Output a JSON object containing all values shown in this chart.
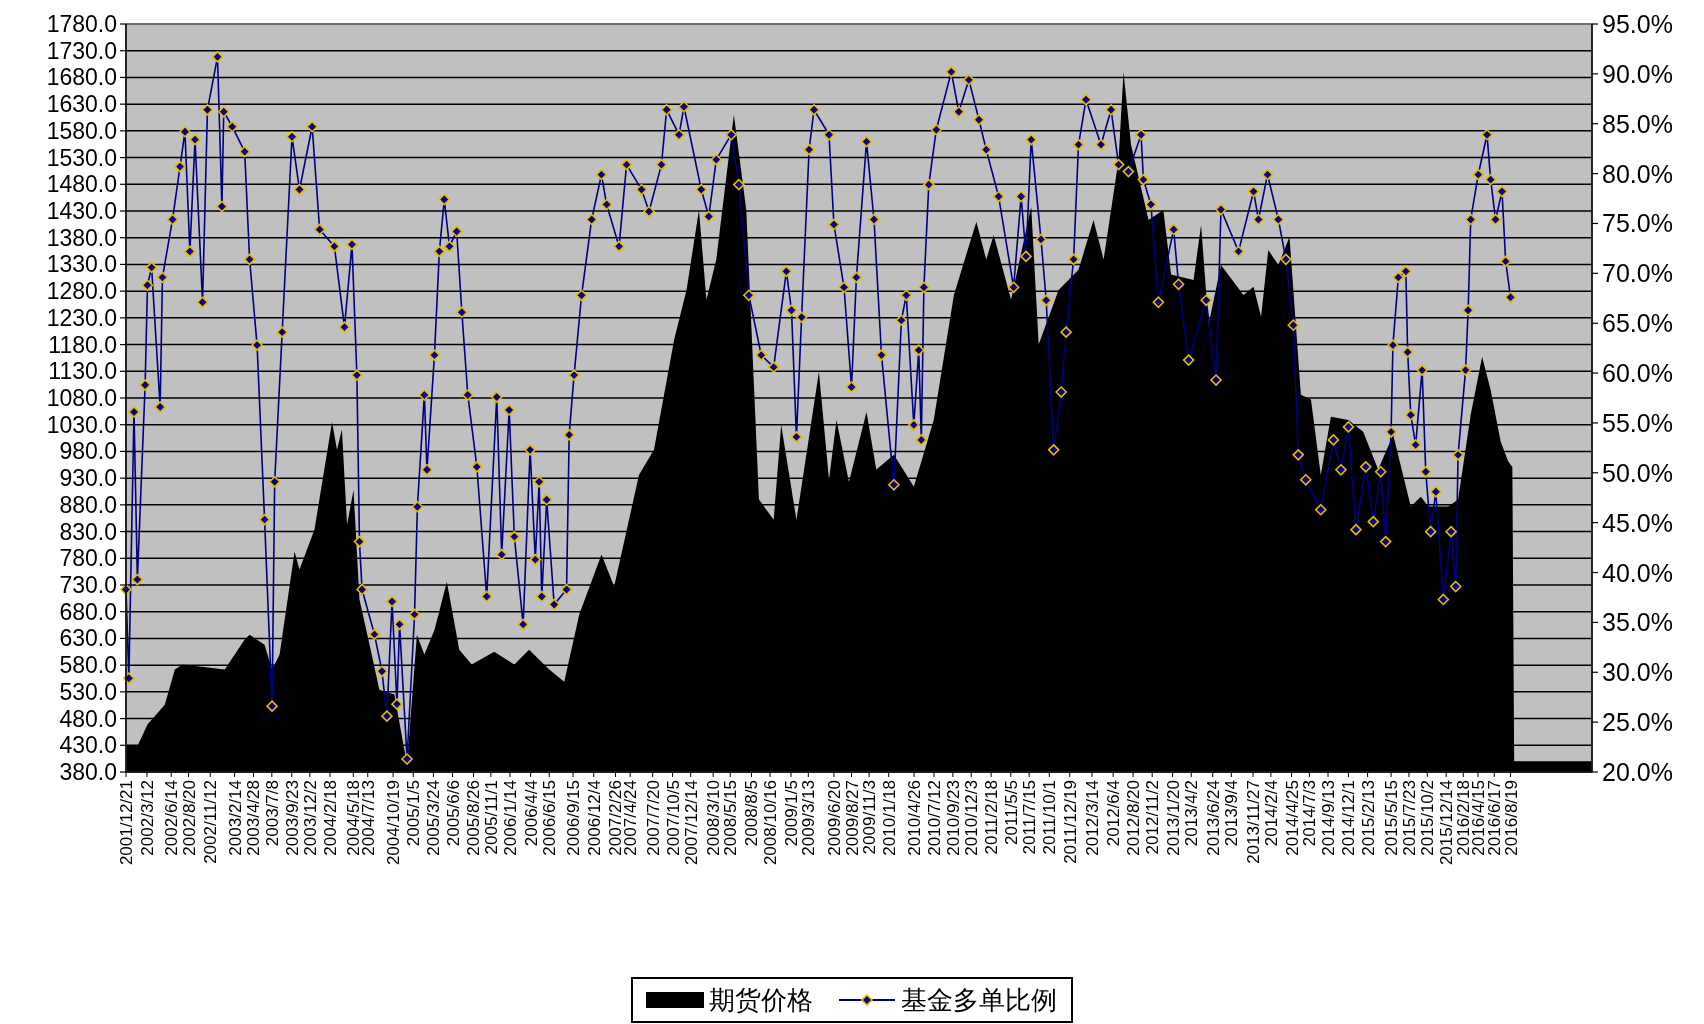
{
  "chart_data": {
    "type": "line",
    "xlim": [
      "2001-12-21",
      "2017-06-30"
    ],
    "ylim": [
      380,
      1780
    ],
    "y2lim": [
      20,
      95
    ],
    "xticks": [
      {
        "value": "2001-12-21",
        "label": "2001/12/21"
      },
      {
        "value": "2002-03-12",
        "label": "2002/3/12"
      },
      {
        "value": "2002-06-14",
        "label": "2002/6/14"
      },
      {
        "value": "2002-08-20",
        "label": "2002/8/20"
      },
      {
        "value": "2002-11-12",
        "label": "2002/11/12"
      },
      {
        "value": "2003-02-14",
        "label": "2003/2/14"
      },
      {
        "value": "2003-04-28",
        "label": "2003/4/28"
      },
      {
        "value": "2003-07-08",
        "label": "2003/7/8"
      },
      {
        "value": "2003-09-23",
        "label": "2003/9/23"
      },
      {
        "value": "2003-12-02",
        "label": "2003/12/2"
      },
      {
        "value": "2004-02-18",
        "label": "2004/2/18"
      },
      {
        "value": "2004-05-18",
        "label": "2004/5/18"
      },
      {
        "value": "2004-07-13",
        "label": "2004/7/13"
      },
      {
        "value": "2004-10-19",
        "label": "2004/10/19"
      },
      {
        "value": "2005-01-05",
        "label": "2005/1/5"
      },
      {
        "value": "2005-03-24",
        "label": "2005/3/24"
      },
      {
        "value": "2005-06-06",
        "label": "2005/6/6"
      },
      {
        "value": "2005-08-26",
        "label": "2005/8/26"
      },
      {
        "value": "2005-11-01",
        "label": "2005/11/1"
      },
      {
        "value": "2006-01-14",
        "label": "2006/1/14"
      },
      {
        "value": "2006-04-04",
        "label": "2006/4/4"
      },
      {
        "value": "2006-06-15",
        "label": "2006/6/15"
      },
      {
        "value": "2006-09-15",
        "label": "2006/9/15"
      },
      {
        "value": "2006-12-04",
        "label": "2006/12/4"
      },
      {
        "value": "2007-02-26",
        "label": "2007/2/26"
      },
      {
        "value": "2007-04-24",
        "label": "2007/4/24"
      },
      {
        "value": "2007-07-20",
        "label": "2007/7/20"
      },
      {
        "value": "2007-10-05",
        "label": "2007/10/5"
      },
      {
        "value": "2007-12-14",
        "label": "2007/12/14"
      },
      {
        "value": "2008-03-10",
        "label": "2008/3/10"
      },
      {
        "value": "2008-05-15",
        "label": "2008/5/15"
      },
      {
        "value": "2008-08-05",
        "label": "2008/8/5"
      },
      {
        "value": "2008-10-16",
        "label": "2008/10/16"
      },
      {
        "value": "2009-01-05",
        "label": "2009/1/5"
      },
      {
        "value": "2009-03-13",
        "label": "2009/3/13"
      },
      {
        "value": "2009-06-20",
        "label": "2009/6/20"
      },
      {
        "value": "2009-08-27",
        "label": "2009/8/27"
      },
      {
        "value": "2009-11-03",
        "label": "2009/11/3"
      },
      {
        "value": "2010-01-18",
        "label": "2010/1/18"
      },
      {
        "value": "2010-04-26",
        "label": "2010/4/26"
      },
      {
        "value": "2010-07-12",
        "label": "2010/7/12"
      },
      {
        "value": "2010-09-23",
        "label": "2010/9/23"
      },
      {
        "value": "2010-12-03",
        "label": "2010/12/3"
      },
      {
        "value": "2011-02-18",
        "label": "2011/2/18"
      },
      {
        "value": "2011-05-05",
        "label": "2011/5/5"
      },
      {
        "value": "2011-07-15",
        "label": "2011/7/15"
      },
      {
        "value": "2011-10-01",
        "label": "2011/10/1"
      },
      {
        "value": "2011-12-19",
        "label": "2011/12/19"
      },
      {
        "value": "2012-03-14",
        "label": "2012/3/14"
      },
      {
        "value": "2012-06-04",
        "label": "2012/6/4"
      },
      {
        "value": "2012-08-20",
        "label": "2012/8/20"
      },
      {
        "value": "2012-11-02",
        "label": "2012/11/2"
      },
      {
        "value": "2013-01-20",
        "label": "2013/1/20"
      },
      {
        "value": "2013-04-02",
        "label": "2013/4/2"
      },
      {
        "value": "2013-06-24",
        "label": "2013/6/24"
      },
      {
        "value": "2013-09-04",
        "label": "2013/9/4"
      },
      {
        "value": "2013-11-27",
        "label": "2013/11/27"
      },
      {
        "value": "2014-02-04",
        "label": "2014/2/4"
      },
      {
        "value": "2014-04-25",
        "label": "2014/4/25"
      },
      {
        "value": "2014-07-03",
        "label": "2014/7/3"
      },
      {
        "value": "2014-09-13",
        "label": "2014/9/13"
      },
      {
        "value": "2014-12-01",
        "label": "2014/12/1"
      },
      {
        "value": "2015-02-13",
        "label": "2015/2/13"
      },
      {
        "value": "2015-05-15",
        "label": "2015/5/15"
      },
      {
        "value": "2015-07-23",
        "label": "2015/7/23"
      },
      {
        "value": "2015-10-02",
        "label": "2015/10/2"
      },
      {
        "value": "2015-12-14",
        "label": "2015/12/14"
      },
      {
        "value": "2016-02-18",
        "label": "2016/2/18"
      },
      {
        "value": "2016-04-15",
        "label": "2016/4/15"
      },
      {
        "value": "2016-06-17",
        "label": "2016/6/17"
      },
      {
        "value": "2016-08-19",
        "label": "2016/8/19"
      }
    ],
    "yticks": [
      {
        "value": 380,
        "label": "380.0"
      },
      {
        "value": 430,
        "label": "430.0"
      },
      {
        "value": 480,
        "label": "480.0"
      },
      {
        "value": 530,
        "label": "530.0"
      },
      {
        "value": 580,
        "label": "580.0"
      },
      {
        "value": 630,
        "label": "630.0"
      },
      {
        "value": 680,
        "label": "680.0"
      },
      {
        "value": 730,
        "label": "730.0"
      },
      {
        "value": 780,
        "label": "780.0"
      },
      {
        "value": 830,
        "label": "830.0"
      },
      {
        "value": 880,
        "label": "880.0"
      },
      {
        "value": 930,
        "label": "930.0"
      },
      {
        "value": 980,
        "label": "980.0"
      },
      {
        "value": 1030,
        "label": "1030.0"
      },
      {
        "value": 1080,
        "label": "1080.0"
      },
      {
        "value": 1130,
        "label": "1130.0"
      },
      {
        "value": 1180,
        "label": "1180.0"
      },
      {
        "value": 1230,
        "label": "1230.0"
      },
      {
        "value": 1280,
        "label": "1280.0"
      },
      {
        "value": 1330,
        "label": "1330.0"
      },
      {
        "value": 1380,
        "label": "1380.0"
      },
      {
        "value": 1430,
        "label": "1430.0"
      },
      {
        "value": 1480,
        "label": "1480.0"
      },
      {
        "value": 1530,
        "label": "1530.0"
      },
      {
        "value": 1580,
        "label": "1580.0"
      },
      {
        "value": 1630,
        "label": "1630.0"
      },
      {
        "value": 1680,
        "label": "1680.0"
      },
      {
        "value": 1730,
        "label": "1730.0"
      },
      {
        "value": 1780,
        "label": "1780.0"
      }
    ],
    "y2ticks": [
      {
        "value": 20,
        "label": "20.0%"
      },
      {
        "value": 25,
        "label": "25.0%"
      },
      {
        "value": 30,
        "label": "30.0%"
      },
      {
        "value": 35,
        "label": "35.0%"
      },
      {
        "value": 40,
        "label": "40.0%"
      },
      {
        "value": 45,
        "label": "45.0%"
      },
      {
        "value": 50,
        "label": "50.0%"
      },
      {
        "value": 55,
        "label": "55.0%"
      },
      {
        "value": 60,
        "label": "60.0%"
      },
      {
        "value": 65,
        "label": "65.0%"
      },
      {
        "value": 70,
        "label": "70.0%"
      },
      {
        "value": 75,
        "label": "75.0%"
      },
      {
        "value": 80,
        "label": "80.0%"
      },
      {
        "value": 85,
        "label": "85.0%"
      },
      {
        "value": 90,
        "label": "90.0%"
      },
      {
        "value": 95,
        "label": "95.0%"
      }
    ],
    "grid": "y",
    "legend": "bottom",
    "series": [
      {
        "type": "area",
        "name": "期货价格",
        "color": "#000000",
        "x": [
          "2001-12-21",
          "2002-02-03",
          "2002-03-14",
          "2002-05-20",
          "2002-06-28",
          "2002-07-27",
          "2003-01-07",
          "2003-03-25",
          "2003-04-13",
          "2003-06-10",
          "2003-07-09",
          "2003-08-07",
          "2003-10-04",
          "2003-10-23",
          "2003-12-20",
          "2004-02-26",
          "2004-03-16",
          "2004-04-04",
          "2004-04-24",
          "2004-05-19",
          "2004-06-11",
          "2004-07-20",
          "2004-08-27",
          "2004-10-24",
          "2004-12-12",
          "2005-01-19",
          "2005-02-17",
          "2005-03-28",
          "2005-05-15",
          "2005-07-02",
          "2005-08-19",
          "2005-11-14",
          "2006-01-31",
          "2006-03-29",
          "2006-06-15",
          "2006-08-12",
          "2006-10-09",
          "2007-01-03",
          "2007-02-21",
          "2007-05-28",
          "2007-07-25",
          "2007-10-11",
          "2007-11-28",
          "2008-01-15",
          "2008-02-13",
          "2008-03-22",
          "2008-05-29",
          "2008-07-16",
          "2008-09-03",
          "2008-10-30",
          "2008-11-28",
          "2009-01-26",
          "2009-04-23",
          "2009-06-01",
          "2009-06-30",
          "2009-08-17",
          "2009-10-24",
          "2009-12-01",
          "2010-02-07",
          "2010-04-25",
          "2010-07-11",
          "2010-09-27",
          "2010-12-23",
          "2011-01-30",
          "2011-02-28",
          "2011-05-06",
          "2011-07-23",
          "2011-08-21",
          "2011-11-06",
          "2012-01-22",
          "2012-03-20",
          "2012-04-28",
          "2012-06-25",
          "2012-07-14",
          "2012-08-12",
          "2012-10-19",
          "2012-12-15",
          "2013-01-14",
          "2013-04-11",
          "2013-05-10",
          "2013-06-08",
          "2013-07-26",
          "2013-10-21",
          "2013-11-29",
          "2013-12-28",
          "2014-01-25",
          "2014-03-05",
          "2014-04-17",
          "2014-05-31",
          "2014-07-09",
          "2014-08-16",
          "2014-09-24",
          "2014-12-01",
          "2015-01-27",
          "2015-03-26",
          "2015-05-23",
          "2015-07-30",
          "2015-09-07",
          "2015-10-06",
          "2015-12-22",
          "2016-01-29",
          "2016-03-18",
          "2016-05-01",
          "2016-06-03",
          "2016-07-12",
          "2016-08-10",
          "2016-08-26",
          "2016-09-02",
          "2017-06-30"
        ],
        "values": [
          431,
          428,
          469,
          506,
          572,
          581,
          572,
          628,
          637,
          618,
          572,
          600,
          792,
          759,
          834,
          1035,
          983,
          1021,
          843,
          908,
          703,
          618,
          534,
          525,
          394,
          637,
          600,
          646,
          736,
          609,
          581,
          605,
          581,
          609,
          572,
          549,
          675,
          787,
          727,
          936,
          983,
          1189,
          1282,
          1432,
          1264,
          1339,
          1610,
          1432,
          890,
          852,
          1030,
          852,
          1129,
          927,
          1039,
          923,
          1054,
          946,
          974,
          914,
          1039,
          1273,
          1410,
          1339,
          1385,
          1264,
          1438,
          1180,
          1282,
          1320,
          1413,
          1339,
          1526,
          1690,
          1554,
          1413,
          1432,
          1311,
          1301,
          1404,
          1217,
          1329,
          1273,
          1288,
          1232,
          1357,
          1329,
          1382,
          1086,
          1077,
          936,
          1045,
          1039,
          1017,
          946,
          1011,
          877,
          895,
          877,
          877,
          890,
          1049,
          1157,
          1095,
          998,
          961,
          951,
          400,
          400
        ]
      },
      {
        "name": "基金多单比例",
        "color": "#000080",
        "axis": "y2",
        "marker": "diamond",
        "x": [
          "2001-12-21",
          "2002-01-01",
          "2002-01-21",
          "2002-02-03",
          "2002-03-05",
          "2002-03-14",
          "2002-03-30",
          "2002-05-02",
          "2002-05-11",
          "2002-06-19",
          "2002-07-18",
          "2002-08-06",
          "2002-08-25",
          "2002-09-14",
          "2002-10-13",
          "2002-11-01",
          "2002-12-10",
          "2002-12-27",
          "2003-01-03",
          "2003-02-05",
          "2003-03-25",
          "2003-04-13",
          "2003-05-12",
          "2003-06-10",
          "2003-07-09",
          "2003-07-19",
          "2003-08-17",
          "2003-09-24",
          "2003-10-23",
          "2003-12-11",
          "2004-01-09",
          "2004-03-06",
          "2004-04-14",
          "2004-05-13",
          "2004-06-01",
          "2004-06-11",
          "2004-06-21",
          "2004-08-08",
          "2004-09-06",
          "2004-09-25",
          "2004-10-15",
          "2004-11-03",
          "2004-11-13",
          "2004-12-12",
          "2005-01-10",
          "2005-01-21",
          "2005-02-17",
          "2005-02-27",
          "2005-03-28",
          "2005-04-16",
          "2005-05-05",
          "2005-05-25",
          "2005-06-22",
          "2005-07-12",
          "2005-08-04",
          "2005-09-08",
          "2005-10-16",
          "2005-11-24",
          "2005-12-13",
          "2006-01-11",
          "2006-01-31",
          "2006-03-06",
          "2006-04-02",
          "2006-04-22",
          "2006-05-07",
          "2006-05-17",
          "2006-06-05",
          "2006-07-04",
          "2006-08-21",
          "2006-08-31",
          "2006-09-19",
          "2006-10-18",
          "2006-11-26",
          "2007-01-03",
          "2007-01-23",
          "2007-03-12",
          "2007-04-10",
          "2007-06-07",
          "2007-07-06",
          "2007-08-23",
          "2007-09-12",
          "2007-10-30",
          "2007-11-18",
          "2008-01-24",
          "2008-02-22",
          "2008-03-22",
          "2008-05-19",
          "2008-06-17",
          "2008-07-26",
          "2008-09-12",
          "2008-10-30",
          "2008-12-18",
          "2009-01-07",
          "2009-01-26",
          "2009-02-15",
          "2009-03-16",
          "2009-04-04",
          "2009-06-01",
          "2009-06-20",
          "2009-07-29",
          "2009-08-27",
          "2009-09-15",
          "2009-10-24",
          "2009-11-22",
          "2009-12-21",
          "2010-02-07",
          "2010-03-08",
          "2010-03-27",
          "2010-04-25",
          "2010-05-14",
          "2010-05-24",
          "2010-06-03",
          "2010-06-22",
          "2010-07-21",
          "2010-09-17",
          "2010-10-16",
          "2010-11-24",
          "2011-01-02",
          "2011-01-30",
          "2011-03-19",
          "2011-05-16",
          "2011-06-14",
          "2011-07-03",
          "2011-07-23",
          "2011-08-30",
          "2011-09-19",
          "2011-10-18",
          "2011-11-16",
          "2011-12-05",
          "2012-01-03",
          "2012-01-22",
          "2012-02-20",
          "2012-04-18",
          "2012-05-27",
          "2012-06-25",
          "2012-08-02",
          "2012-09-20",
          "2012-09-29",
          "2012-10-28",
          "2012-11-26",
          "2013-01-24",
          "2013-02-12",
          "2013-03-23",
          "2013-05-30",
          "2013-07-07",
          "2013-07-26",
          "2013-10-02",
          "2013-11-29",
          "2013-12-18",
          "2014-01-22",
          "2014-03-05",
          "2014-04-03",
          "2014-05-02",
          "2014-05-21",
          "2014-06-19",
          "2014-08-16",
          "2014-10-04",
          "2014-11-02",
          "2014-12-01",
          "2014-12-30",
          "2015-02-06",
          "2015-03-07",
          "2015-04-05",
          "2015-04-24",
          "2015-05-15",
          "2015-05-22",
          "2015-06-12",
          "2015-07-11",
          "2015-07-18",
          "2015-07-30",
          "2015-08-18",
          "2015-09-12",
          "2015-09-26",
          "2015-10-15",
          "2015-11-04",
          "2015-12-03",
          "2016-01-02",
          "2016-01-20",
          "2016-01-29",
          "2016-02-27",
          "2016-03-08",
          "2016-03-18",
          "2016-04-16",
          "2016-05-20",
          "2016-06-03",
          "2016-06-22",
          "2016-07-17",
          "2016-07-31",
          "2016-08-19"
        ],
        "values": [
          38.3,
          29.4,
          56.1,
          39.3,
          58.8,
          68.8,
          70.6,
          56.6,
          69.6,
          75.4,
          80.7,
          84.2,
          72.2,
          83.4,
          67.1,
          86.4,
          91.7,
          76.7,
          86.2,
          84.7,
          82.2,
          71.4,
          62.8,
          45.3,
          26.6,
          49.1,
          64.1,
          83.7,
          78.4,
          84.7,
          74.4,
          72.7,
          64.6,
          72.9,
          59.8,
          43.1,
          38.3,
          33.8,
          30.1,
          25.6,
          37.1,
          26.8,
          34.8,
          21.3,
          35.8,
          46.6,
          57.8,
          50.3,
          61.8,
          72.2,
          77.4,
          72.7,
          74.2,
          66.1,
          57.8,
          50.6,
          37.6,
          57.6,
          41.8,
          56.3,
          43.6,
          34.8,
          52.3,
          41.3,
          49.1,
          37.6,
          47.3,
          36.8,
          38.3,
          53.8,
          59.8,
          67.8,
          75.4,
          79.9,
          76.9,
          72.7,
          80.9,
          78.4,
          76.2,
          80.9,
          86.4,
          83.9,
          86.7,
          78.4,
          75.7,
          81.4,
          83.9,
          78.9,
          67.8,
          61.8,
          60.6,
          70.2,
          66.3,
          53.6,
          65.6,
          82.4,
          86.4,
          83.9,
          74.9,
          68.6,
          58.6,
          69.6,
          83.2,
          75.4,
          61.8,
          48.8,
          65.3,
          67.8,
          54.8,
          62.3,
          53.3,
          68.6,
          78.9,
          84.4,
          90.2,
          86.2,
          89.4,
          85.4,
          82.4,
          77.7,
          68.6,
          77.7,
          71.7,
          83.4,
          73.4,
          67.3,
          52.3,
          58.1,
          64.1,
          71.4,
          82.9,
          87.4,
          82.9,
          86.4,
          80.9,
          80.2,
          83.9,
          79.4,
          76.9,
          67.1,
          74.4,
          68.9,
          61.3,
          67.3,
          59.3,
          76.4,
          72.2,
          78.2,
          75.4,
          79.9,
          75.4,
          71.4,
          64.8,
          51.8,
          49.3,
          46.3,
          53.3,
          50.3,
          54.6,
          44.3,
          50.6,
          45.1,
          50.1,
          43.1,
          54.1,
          62.8,
          69.6,
          70.2,
          62.1,
          55.8,
          52.8,
          60.3,
          50.1,
          44.1,
          48.1,
          37.3,
          44.1,
          38.6,
          51.8,
          60.3,
          66.3,
          75.4,
          79.9,
          83.9,
          79.4,
          75.4,
          78.2,
          71.2,
          67.6
        ]
      }
    ]
  }
}
